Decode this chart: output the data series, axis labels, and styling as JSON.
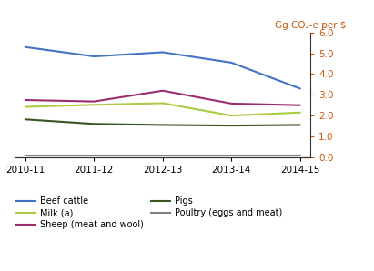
{
  "x_labels": [
    "2010-11",
    "2011-12",
    "2012-13",
    "2013-14",
    "2014-15"
  ],
  "series_order": [
    "Beef cattle",
    "Sheep (meat and wool)",
    "Milk (a)",
    "Pigs",
    "Poultry (eggs and meat)"
  ],
  "series": {
    "Beef cattle": {
      "values": [
        5.3,
        4.85,
        5.05,
        4.55,
        3.3
      ],
      "color": "#4472C4",
      "linewidth": 1.5
    },
    "Sheep (meat and wool)": {
      "values": [
        2.75,
        2.68,
        3.2,
        2.58,
        2.5
      ],
      "color": "#9B2D6F",
      "linewidth": 1.5
    },
    "Milk (a)": {
      "values": [
        2.42,
        2.52,
        2.6,
        2.0,
        2.15
      ],
      "color": "#AACC44",
      "linewidth": 1.5
    },
    "Pigs": {
      "values": [
        1.82,
        1.6,
        1.55,
        1.52,
        1.55
      ],
      "color": "#375623",
      "linewidth": 1.5
    },
    "Poultry (eggs and meat)": {
      "values": [
        0.08,
        0.08,
        0.08,
        0.08,
        0.08
      ],
      "color": "#808080",
      "linewidth": 1.5
    }
  },
  "ylim": [
    0.0,
    6.0
  ],
  "yticks": [
    0.0,
    1.0,
    2.0,
    3.0,
    4.0,
    5.0,
    6.0
  ],
  "right_ylabel": "Gg CO₂-e per $",
  "ylabel_color": "#C55A11",
  "background_color": "#FFFFFF",
  "grid_color": "#AAAAAA",
  "legend_col1": [
    "Beef cattle",
    "Sheep (meat and wool)",
    "Poultry (eggs and meat)"
  ],
  "legend_col2": [
    "Milk (a)",
    "Pigs"
  ]
}
